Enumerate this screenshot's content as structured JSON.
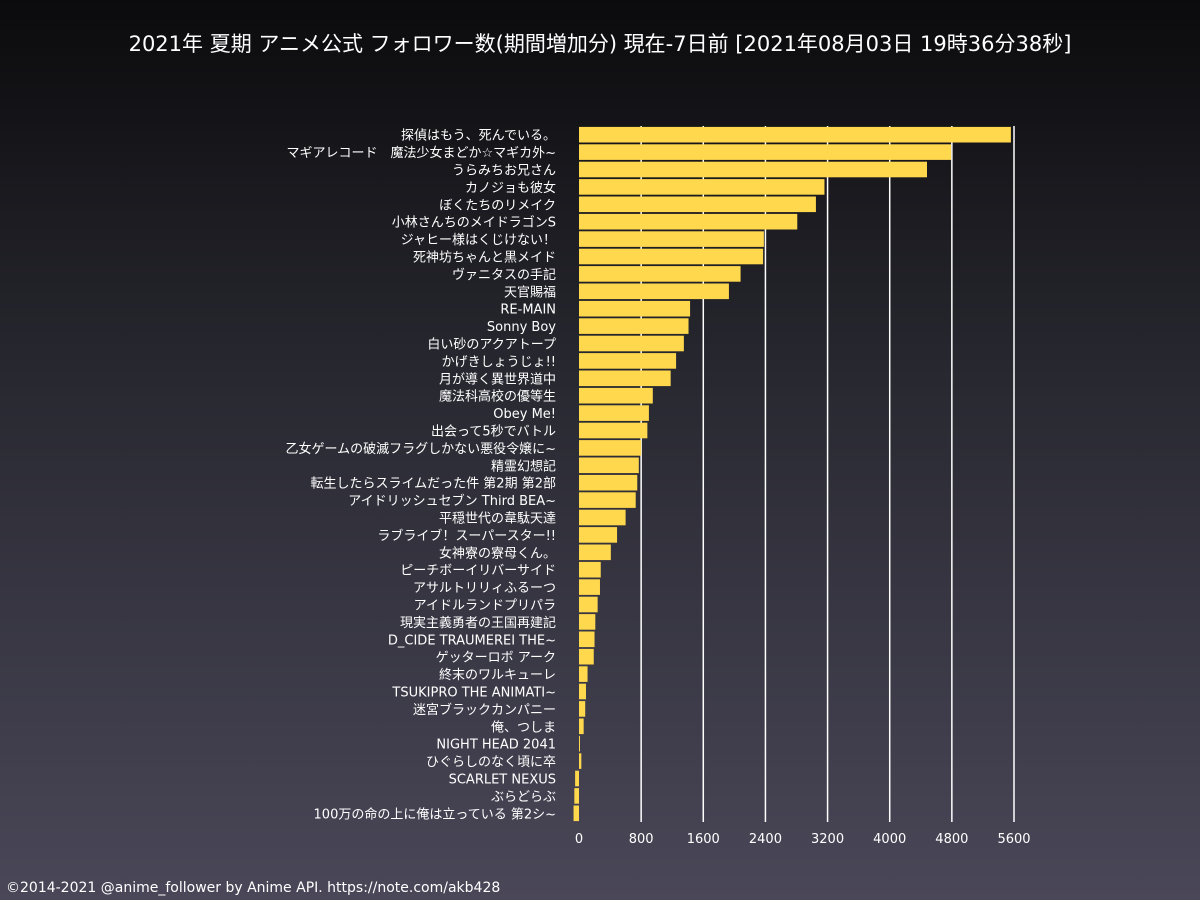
{
  "title": "2021年 夏期 アニメ公式 フォロワー数(期間増加分) 現在-7日前 [2021年08月03日 19時36分38秒]",
  "footer": "©2014-2021 @anime_follower by Anime API. https://note.com/akb428",
  "colors": {
    "bar": "#ffd84d",
    "grid": "#ffffff",
    "text": "#ffffff"
  },
  "chart_data": {
    "type": "bar",
    "orientation": "horizontal",
    "categories": [
      "探偵はもう、死んでいる。",
      "マギアレコード　魔法少女まどか☆マギカ外~",
      "うらみちお兄さん",
      "カノジョも彼女",
      "ぼくたちのリメイク",
      "小林さんちのメイドラゴンS",
      "ジャヒー様はくじけない！",
      "死神坊ちゃんと黒メイド",
      "ヴァニタスの手記",
      "天官賜福",
      "RE-MAIN",
      "Sonny Boy",
      "白い砂のアクアトープ",
      "かげきしょうじょ!!",
      "月が導く異世界道中",
      "魔法科高校の優等生",
      "Obey Me!",
      "出会って5秒でバトル",
      "乙女ゲームの破滅フラグしかない悪役令嬢に~",
      "精霊幻想記",
      "転生したらスライムだった件 第2期 第2部",
      "アイドリッシュセブン Third BEA~",
      "平穏世代の韋駄天達",
      "ラブライブ！スーパースター!!",
      "女神寮の寮母くん。",
      "ピーチボーイリバーサイド",
      "アサルトリリィふるーつ",
      "アイドルランドプリパラ",
      "現実主義勇者の王国再建記",
      "D_CIDE TRAUMEREI THE~",
      "ゲッターロボ アーク",
      "終末のワルキューレ",
      "TSUKIPRO THE ANIMATI~",
      "迷宮ブラックカンパニー",
      "俺、つしま",
      "NIGHT HEAD 2041",
      "ひぐらしのなく頃に卒",
      "SCARLET NEXUS",
      "ぶらどらぶ",
      "100万の命の上に俺は立っている 第2シ~"
    ],
    "values": [
      5560,
      4790,
      4480,
      3160,
      3050,
      2810,
      2380,
      2370,
      2080,
      1930,
      1430,
      1410,
      1350,
      1250,
      1180,
      950,
      900,
      880,
      800,
      770,
      750,
      730,
      600,
      490,
      410,
      280,
      270,
      240,
      210,
      200,
      190,
      110,
      90,
      80,
      60,
      10,
      30,
      -50,
      -60,
      -70
    ],
    "xlim": [
      0,
      5600
    ],
    "xticks": [
      0,
      800,
      1600,
      2400,
      3200,
      4000,
      4800,
      5600
    ],
    "grid": true
  }
}
